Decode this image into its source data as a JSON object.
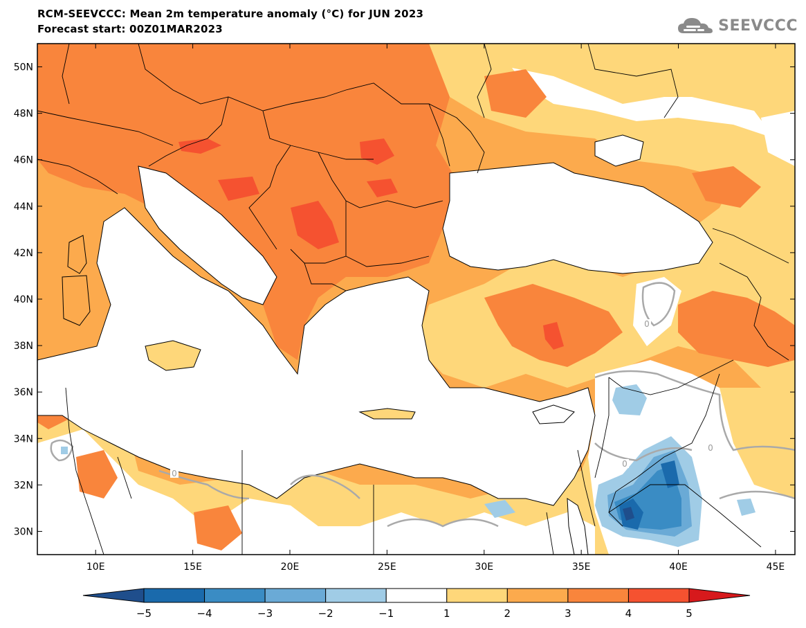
{
  "title": {
    "line1": "RCM-SEEVCCC: Mean 2m temperature anomaly (°C) for JUN 2023",
    "line2": "Forecast start: 00Z01MAR2023"
  },
  "logo": {
    "icon": "cloud-logo-icon",
    "text": "SEEVCCC"
  },
  "map": {
    "variable": "Mean 2m temperature anomaly",
    "unit": "°C",
    "region": "Southeastern Europe and Eastern Mediterranean",
    "lat_labels": [
      "50N",
      "48N",
      "46N",
      "44N",
      "42N",
      "40N",
      "38N",
      "36N",
      "34N",
      "32N",
      "30N"
    ],
    "lat_values": [
      50,
      48,
      46,
      44,
      42,
      40,
      38,
      36,
      34,
      32,
      30
    ],
    "lon_labels": [
      "10E",
      "15E",
      "20E",
      "25E",
      "30E",
      "35E",
      "40E",
      "45E"
    ],
    "lon_values": [
      10,
      15,
      20,
      25,
      30,
      35,
      40,
      45
    ],
    "lon_range": [
      7,
      46
    ],
    "lat_range": [
      29,
      51
    ],
    "contour_labels": [
      "0",
      "0",
      "0",
      "0"
    ]
  },
  "colorbar": {
    "labels": [
      "−5",
      "−4",
      "−3",
      "−2",
      "−1",
      "1",
      "2",
      "3",
      "4",
      "5"
    ],
    "boundaries": [
      -5,
      -4,
      -3,
      -2,
      -1,
      1,
      2,
      3,
      4,
      5
    ],
    "colors": [
      "#1f4e8c",
      "#1a6aac",
      "#3a8cc4",
      "#6aaad6",
      "#a0cce6",
      "#ffffff",
      "#fed77a",
      "#fcaa4d",
      "#f9853c",
      "#f55230",
      "#d7191c"
    ],
    "extend": "both"
  }
}
